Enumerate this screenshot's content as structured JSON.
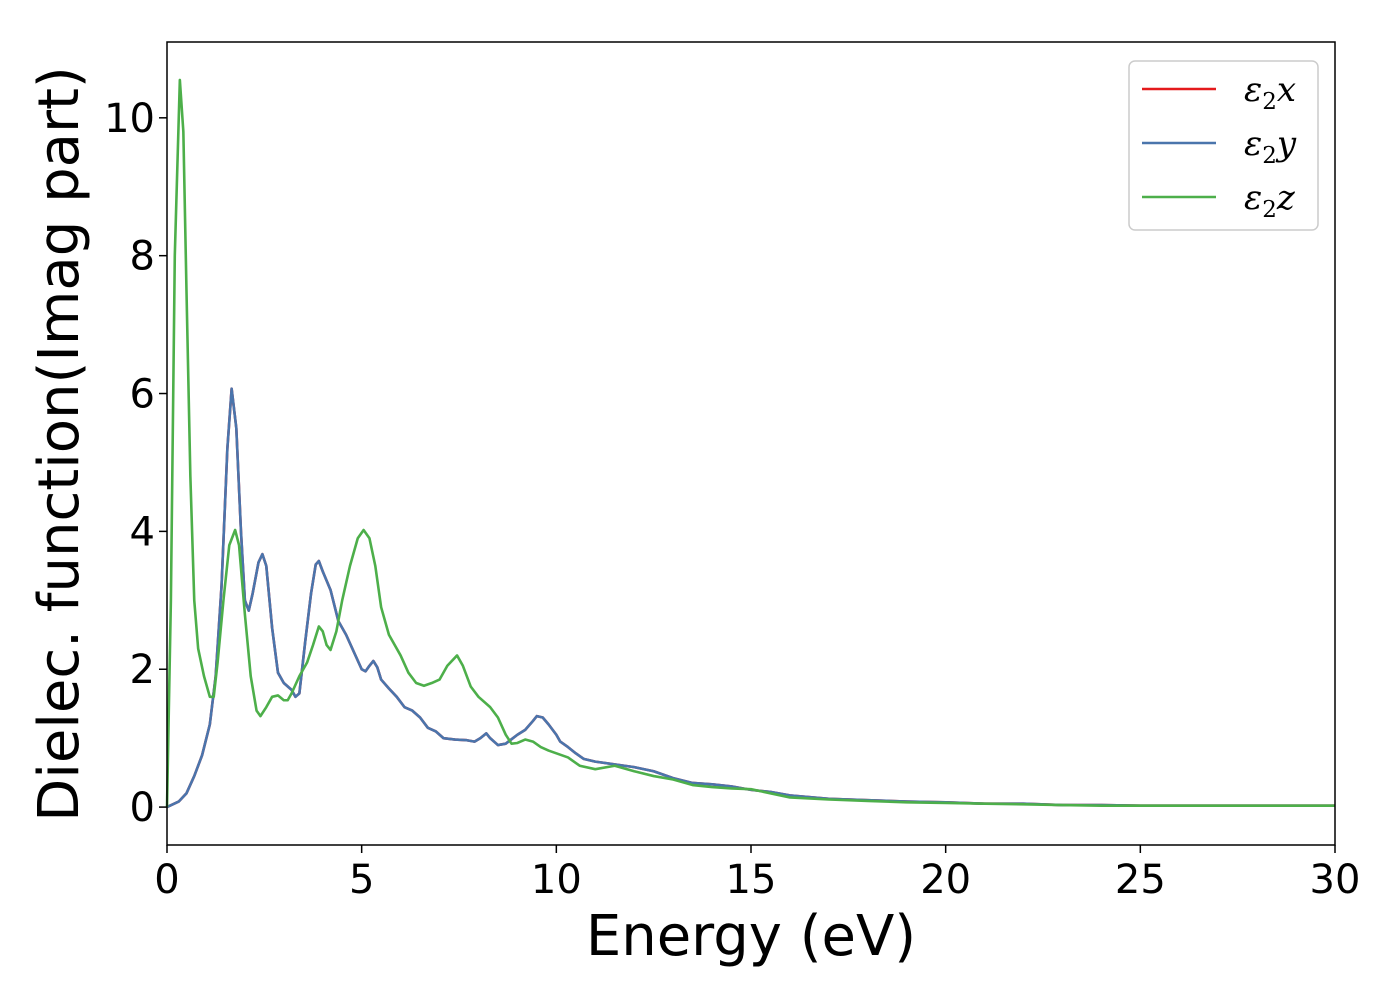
{
  "chart_data": {
    "type": "line",
    "title": "",
    "xlabel": "Energy (eV)",
    "ylabel": "Dielec. function(Imag part)",
    "xlim": [
      0,
      30
    ],
    "ylim": [
      -0.55,
      11.1
    ],
    "xticks": [
      0,
      5,
      10,
      15,
      20,
      25,
      30
    ],
    "yticks": [
      0,
      2,
      4,
      6,
      8,
      10
    ],
    "grid": false,
    "legend_position": "top-right",
    "series": [
      {
        "name": "ε2x",
        "legend": {
          "base": "ε",
          "sub": "2",
          "axis": "x"
        },
        "color": "#e41a1c",
        "points": [
          [
            0,
            0
          ],
          [
            0.3,
            0.08
          ],
          [
            0.5,
            0.2
          ],
          [
            0.7,
            0.45
          ],
          [
            0.9,
            0.75
          ],
          [
            1.1,
            1.2
          ],
          [
            1.25,
            1.9
          ],
          [
            1.4,
            3.2
          ],
          [
            1.55,
            5.2
          ],
          [
            1.66,
            6.07
          ],
          [
            1.78,
            5.5
          ],
          [
            1.9,
            4.0
          ],
          [
            2.0,
            3.0
          ],
          [
            2.1,
            2.85
          ],
          [
            2.2,
            3.1
          ],
          [
            2.35,
            3.55
          ],
          [
            2.45,
            3.67
          ],
          [
            2.55,
            3.5
          ],
          [
            2.7,
            2.6
          ],
          [
            2.85,
            1.95
          ],
          [
            3.0,
            1.8
          ],
          [
            3.2,
            1.7
          ],
          [
            3.3,
            1.6
          ],
          [
            3.4,
            1.65
          ],
          [
            3.55,
            2.4
          ],
          [
            3.7,
            3.1
          ],
          [
            3.82,
            3.52
          ],
          [
            3.9,
            3.57
          ],
          [
            4.0,
            3.42
          ],
          [
            4.2,
            3.15
          ],
          [
            4.4,
            2.7
          ],
          [
            4.6,
            2.5
          ],
          [
            4.8,
            2.25
          ],
          [
            5.0,
            2.0
          ],
          [
            5.1,
            1.97
          ],
          [
            5.2,
            2.05
          ],
          [
            5.3,
            2.12
          ],
          [
            5.4,
            2.03
          ],
          [
            5.5,
            1.85
          ],
          [
            5.7,
            1.72
          ],
          [
            5.9,
            1.6
          ],
          [
            6.1,
            1.45
          ],
          [
            6.3,
            1.4
          ],
          [
            6.5,
            1.3
          ],
          [
            6.7,
            1.15
          ],
          [
            6.9,
            1.1
          ],
          [
            7.1,
            1.0
          ],
          [
            7.4,
            0.98
          ],
          [
            7.7,
            0.97
          ],
          [
            7.9,
            0.95
          ],
          [
            8.05,
            1.0
          ],
          [
            8.2,
            1.07
          ],
          [
            8.3,
            1.0
          ],
          [
            8.5,
            0.9
          ],
          [
            8.7,
            0.92
          ],
          [
            9.0,
            1.05
          ],
          [
            9.2,
            1.12
          ],
          [
            9.4,
            1.25
          ],
          [
            9.5,
            1.32
          ],
          [
            9.65,
            1.3
          ],
          [
            9.8,
            1.2
          ],
          [
            10.0,
            1.05
          ],
          [
            10.1,
            0.95
          ],
          [
            10.3,
            0.87
          ],
          [
            10.5,
            0.78
          ],
          [
            10.7,
            0.7
          ],
          [
            11.0,
            0.66
          ],
          [
            11.5,
            0.62
          ],
          [
            12.0,
            0.58
          ],
          [
            12.5,
            0.52
          ],
          [
            13.0,
            0.42
          ],
          [
            13.5,
            0.35
          ],
          [
            14.0,
            0.33
          ],
          [
            14.5,
            0.3
          ],
          [
            15.0,
            0.25
          ],
          [
            15.5,
            0.22
          ],
          [
            16.0,
            0.17
          ],
          [
            17.0,
            0.12
          ],
          [
            18.0,
            0.1
          ],
          [
            19.0,
            0.08
          ],
          [
            20.0,
            0.07
          ],
          [
            21.0,
            0.05
          ],
          [
            22.0,
            0.05
          ],
          [
            23.0,
            0.03
          ],
          [
            24.0,
            0.03
          ],
          [
            25.0,
            0.02
          ],
          [
            26.0,
            0.02
          ],
          [
            27.0,
            0.02
          ],
          [
            28.0,
            0.02
          ],
          [
            29.0,
            0.02
          ],
          [
            30.0,
            0.02
          ]
        ]
      },
      {
        "name": "ε2y",
        "legend": {
          "base": "ε",
          "sub": "2",
          "axis": "y"
        },
        "color": "#4a75ac",
        "points": [
          [
            0,
            0
          ],
          [
            0.3,
            0.08
          ],
          [
            0.5,
            0.2
          ],
          [
            0.7,
            0.45
          ],
          [
            0.9,
            0.75
          ],
          [
            1.1,
            1.2
          ],
          [
            1.25,
            1.9
          ],
          [
            1.4,
            3.2
          ],
          [
            1.55,
            5.2
          ],
          [
            1.66,
            6.07
          ],
          [
            1.78,
            5.5
          ],
          [
            1.9,
            4.0
          ],
          [
            2.0,
            3.0
          ],
          [
            2.1,
            2.85
          ],
          [
            2.2,
            3.1
          ],
          [
            2.35,
            3.55
          ],
          [
            2.45,
            3.67
          ],
          [
            2.55,
            3.5
          ],
          [
            2.7,
            2.6
          ],
          [
            2.85,
            1.95
          ],
          [
            3.0,
            1.8
          ],
          [
            3.2,
            1.7
          ],
          [
            3.3,
            1.6
          ],
          [
            3.4,
            1.65
          ],
          [
            3.55,
            2.4
          ],
          [
            3.7,
            3.1
          ],
          [
            3.82,
            3.52
          ],
          [
            3.9,
            3.57
          ],
          [
            4.0,
            3.42
          ],
          [
            4.2,
            3.15
          ],
          [
            4.4,
            2.7
          ],
          [
            4.6,
            2.5
          ],
          [
            4.8,
            2.25
          ],
          [
            5.0,
            2.0
          ],
          [
            5.1,
            1.97
          ],
          [
            5.2,
            2.05
          ],
          [
            5.3,
            2.12
          ],
          [
            5.4,
            2.03
          ],
          [
            5.5,
            1.85
          ],
          [
            5.7,
            1.72
          ],
          [
            5.9,
            1.6
          ],
          [
            6.1,
            1.45
          ],
          [
            6.3,
            1.4
          ],
          [
            6.5,
            1.3
          ],
          [
            6.7,
            1.15
          ],
          [
            6.9,
            1.1
          ],
          [
            7.1,
            1.0
          ],
          [
            7.4,
            0.98
          ],
          [
            7.7,
            0.97
          ],
          [
            7.9,
            0.95
          ],
          [
            8.05,
            1.0
          ],
          [
            8.2,
            1.07
          ],
          [
            8.3,
            1.0
          ],
          [
            8.5,
            0.9
          ],
          [
            8.7,
            0.92
          ],
          [
            9.0,
            1.05
          ],
          [
            9.2,
            1.12
          ],
          [
            9.4,
            1.25
          ],
          [
            9.5,
            1.32
          ],
          [
            9.65,
            1.3
          ],
          [
            9.8,
            1.2
          ],
          [
            10.0,
            1.05
          ],
          [
            10.1,
            0.95
          ],
          [
            10.3,
            0.87
          ],
          [
            10.5,
            0.78
          ],
          [
            10.7,
            0.7
          ],
          [
            11.0,
            0.66
          ],
          [
            11.5,
            0.62
          ],
          [
            12.0,
            0.58
          ],
          [
            12.5,
            0.52
          ],
          [
            13.0,
            0.42
          ],
          [
            13.5,
            0.35
          ],
          [
            14.0,
            0.33
          ],
          [
            14.5,
            0.3
          ],
          [
            15.0,
            0.25
          ],
          [
            15.5,
            0.22
          ],
          [
            16.0,
            0.17
          ],
          [
            17.0,
            0.12
          ],
          [
            18.0,
            0.1
          ],
          [
            19.0,
            0.08
          ],
          [
            20.0,
            0.07
          ],
          [
            21.0,
            0.05
          ],
          [
            22.0,
            0.05
          ],
          [
            23.0,
            0.03
          ],
          [
            24.0,
            0.03
          ],
          [
            25.0,
            0.02
          ],
          [
            26.0,
            0.02
          ],
          [
            27.0,
            0.02
          ],
          [
            28.0,
            0.02
          ],
          [
            29.0,
            0.02
          ],
          [
            30.0,
            0.02
          ]
        ]
      },
      {
        "name": "ε2z",
        "legend": {
          "base": "ε",
          "sub": "2",
          "axis": "z"
        },
        "color": "#4daf4a",
        "points": [
          [
            0,
            0
          ],
          [
            0.1,
            3.0
          ],
          [
            0.2,
            8.0
          ],
          [
            0.33,
            10.55
          ],
          [
            0.42,
            9.8
          ],
          [
            0.5,
            7.5
          ],
          [
            0.6,
            4.8
          ],
          [
            0.7,
            3.0
          ],
          [
            0.8,
            2.3
          ],
          [
            0.95,
            1.9
          ],
          [
            1.1,
            1.6
          ],
          [
            1.2,
            1.6
          ],
          [
            1.3,
            2.1
          ],
          [
            1.45,
            3.0
          ],
          [
            1.6,
            3.8
          ],
          [
            1.75,
            4.02
          ],
          [
            1.85,
            3.8
          ],
          [
            2.0,
            2.8
          ],
          [
            2.15,
            1.9
          ],
          [
            2.3,
            1.4
          ],
          [
            2.4,
            1.32
          ],
          [
            2.55,
            1.45
          ],
          [
            2.7,
            1.6
          ],
          [
            2.85,
            1.62
          ],
          [
            3.0,
            1.55
          ],
          [
            3.1,
            1.55
          ],
          [
            3.2,
            1.65
          ],
          [
            3.4,
            1.9
          ],
          [
            3.6,
            2.1
          ],
          [
            3.75,
            2.35
          ],
          [
            3.9,
            2.62
          ],
          [
            4.0,
            2.55
          ],
          [
            4.1,
            2.35
          ],
          [
            4.2,
            2.28
          ],
          [
            4.35,
            2.55
          ],
          [
            4.5,
            3.0
          ],
          [
            4.7,
            3.5
          ],
          [
            4.9,
            3.9
          ],
          [
            5.05,
            4.02
          ],
          [
            5.2,
            3.9
          ],
          [
            5.35,
            3.5
          ],
          [
            5.5,
            2.9
          ],
          [
            5.7,
            2.5
          ],
          [
            6.0,
            2.2
          ],
          [
            6.2,
            1.95
          ],
          [
            6.4,
            1.8
          ],
          [
            6.6,
            1.76
          ],
          [
            6.8,
            1.8
          ],
          [
            7.0,
            1.85
          ],
          [
            7.2,
            2.05
          ],
          [
            7.45,
            2.2
          ],
          [
            7.6,
            2.05
          ],
          [
            7.8,
            1.75
          ],
          [
            8.0,
            1.6
          ],
          [
            8.3,
            1.45
          ],
          [
            8.5,
            1.3
          ],
          [
            8.7,
            1.05
          ],
          [
            8.85,
            0.92
          ],
          [
            9.0,
            0.93
          ],
          [
            9.2,
            0.98
          ],
          [
            9.4,
            0.95
          ],
          [
            9.6,
            0.87
          ],
          [
            9.8,
            0.82
          ],
          [
            10.0,
            0.78
          ],
          [
            10.3,
            0.72
          ],
          [
            10.6,
            0.6
          ],
          [
            11.0,
            0.55
          ],
          [
            11.5,
            0.6
          ],
          [
            12.0,
            0.52
          ],
          [
            12.5,
            0.45
          ],
          [
            13.0,
            0.4
          ],
          [
            13.5,
            0.32
          ],
          [
            14.0,
            0.29
          ],
          [
            14.5,
            0.27
          ],
          [
            15.0,
            0.26
          ],
          [
            15.5,
            0.2
          ],
          [
            16.0,
            0.14
          ],
          [
            17.0,
            0.11
          ],
          [
            18.0,
            0.09
          ],
          [
            19.0,
            0.07
          ],
          [
            20.0,
            0.06
          ],
          [
            21.0,
            0.05
          ],
          [
            22.0,
            0.04
          ],
          [
            23.0,
            0.03
          ],
          [
            24.0,
            0.02
          ],
          [
            25.0,
            0.02
          ],
          [
            26.0,
            0.02
          ],
          [
            27.0,
            0.02
          ],
          [
            28.0,
            0.02
          ],
          [
            29.0,
            0.02
          ],
          [
            30.0,
            0.02
          ]
        ]
      }
    ]
  }
}
